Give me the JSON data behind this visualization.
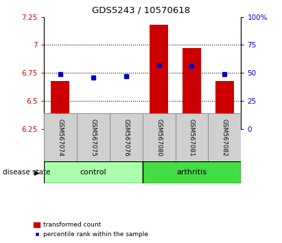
{
  "title": "GDS5243 / 10570618",
  "samples": [
    "GSM567074",
    "GSM567075",
    "GSM567076",
    "GSM567080",
    "GSM567081",
    "GSM567082"
  ],
  "bar_bottoms": [
    6.25,
    6.25,
    6.25,
    6.25,
    6.25,
    6.25
  ],
  "bar_tops": [
    6.68,
    6.27,
    6.35,
    7.18,
    6.97,
    6.68
  ],
  "percentile_values": [
    6.74,
    6.71,
    6.72,
    6.82,
    6.81,
    6.74
  ],
  "ylim_left": [
    6.25,
    7.25
  ],
  "ylim_right": [
    0,
    100
  ],
  "yticks_left": [
    6.25,
    6.5,
    6.75,
    7.0,
    7.25
  ],
  "yticks_right": [
    0,
    25,
    50,
    75,
    100
  ],
  "ytick_labels_left": [
    "6.25",
    "6.5",
    "6.75",
    "7",
    "7.25"
  ],
  "ytick_labels_right": [
    "0",
    "25",
    "50",
    "75",
    "100%"
  ],
  "hlines": [
    6.5,
    6.75,
    7.0
  ],
  "bar_color": "#cc0000",
  "point_color": "#0000cc",
  "control_color": "#aaffaa",
  "arthritis_color": "#44dd44",
  "legend_bar_label": "transformed count",
  "legend_point_label": "percentile rank within the sample",
  "group_label": "disease state"
}
